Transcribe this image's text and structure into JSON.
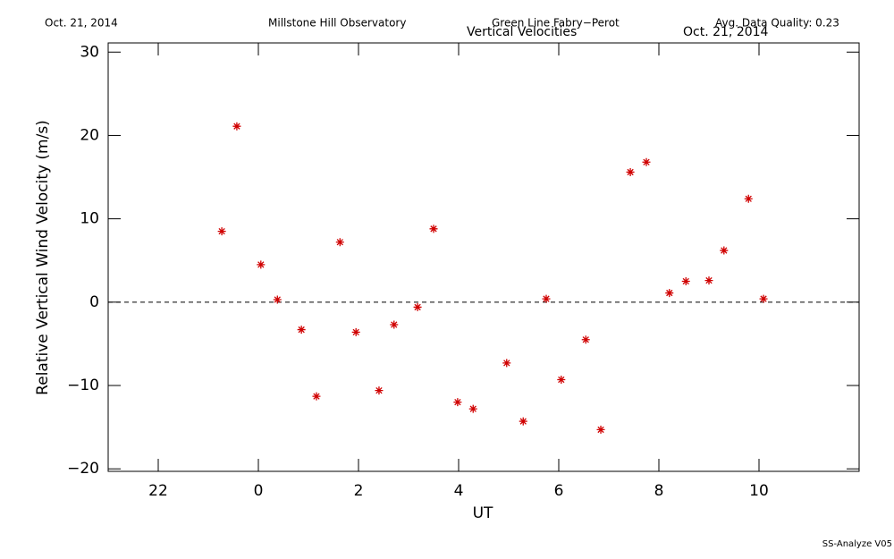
{
  "chart_data": {
    "type": "scatter",
    "header_left": "Oct. 21, 2014",
    "header_center": "Millstone Hill Observatory",
    "header_instrument": "Green Line Fabry−Perot",
    "header_quality": "Avg. Data Quality: 0.23",
    "title": "Vertical Velocities",
    "title_date": "Oct. 21, 2014",
    "x_label": "UT",
    "y_label": "Relative Vertical Wind Velocity (m/s)",
    "footer": "SS-Analyze V05",
    "color": "#d00000",
    "xlim": [
      -3,
      12
    ],
    "ylim": [
      -20.3,
      31.1
    ],
    "xticks": [
      {
        "value": -2,
        "label": "22"
      },
      0,
      2,
      4,
      6,
      8,
      10
    ],
    "yticks": [
      {
        "value": -20,
        "label": "−20"
      },
      {
        "value": -10,
        "label": "−10"
      },
      0,
      10,
      20,
      30
    ],
    "reference_line": 0,
    "x": [
      -0.73,
      -0.43,
      0.05,
      0.38,
      0.86,
      1.16,
      1.63,
      1.95,
      2.41,
      2.71,
      3.18,
      3.5,
      3.98,
      4.29,
      4.96,
      5.29,
      5.75,
      6.05,
      6.54,
      6.84,
      7.43,
      7.75,
      8.21,
      8.54,
      9.0,
      9.3,
      9.79,
      10.09
    ],
    "values": [
      8.5,
      21.1,
      4.5,
      0.3,
      -3.3,
      -11.3,
      7.2,
      -3.6,
      -10.6,
      -2.7,
      -0.6,
      8.8,
      -12.0,
      -12.8,
      -7.3,
      -14.3,
      0.4,
      -9.3,
      -4.5,
      -15.3,
      15.6,
      16.8,
      1.1,
      2.5,
      2.6,
      6.2,
      12.4,
      0.4
    ]
  }
}
